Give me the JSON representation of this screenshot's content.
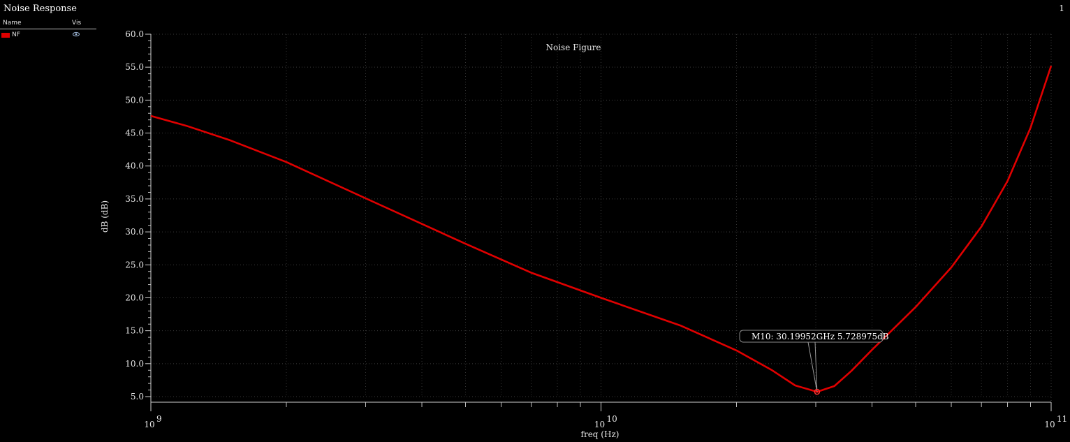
{
  "window": {
    "title": "Noise Response",
    "page_number": "1"
  },
  "legend": {
    "col_name": "Name",
    "col_vis": "Vis",
    "items": [
      {
        "label": "NF",
        "color": "#e00000",
        "visible_icon": "eye-icon"
      }
    ]
  },
  "marker": {
    "text": "M10: 30.19952GHz 5.728975dB",
    "x": 30199520000,
    "y": 5.728975
  },
  "chart_data": {
    "type": "line",
    "title": "Noise Figure",
    "xlabel": "freq (Hz)",
    "ylabel": "dB (dB)",
    "xscale": "log",
    "xlim": [
      1000000000.0,
      100000000000.0
    ],
    "ylim": [
      5.0,
      60.0
    ],
    "yticks": [
      "5.0",
      "10.0",
      "15.0",
      "20.0",
      "25.0",
      "30.0",
      "35.0",
      "40.0",
      "45.0",
      "50.0",
      "55.0",
      "60.0"
    ],
    "xticks": [
      {
        "base": "10",
        "exp": "9",
        "value": 1000000000.0
      },
      {
        "base": "10",
        "exp": "10",
        "value": 10000000000.0
      },
      {
        "base": "10",
        "exp": "11",
        "value": 100000000000.0
      }
    ],
    "grid": true,
    "series": [
      {
        "name": "NF",
        "color": "#e00000",
        "x": [
          1000000000.0,
          1200000000.0,
          1500000000.0,
          2000000000.0,
          3000000000.0,
          5000000000.0,
          7000000000.0,
          10000000000.0,
          15000000000.0,
          20000000000.0,
          24000000000.0,
          27000000000.0,
          30200000000.0,
          33000000000.0,
          36000000000.0,
          40000000000.0,
          50000000000.0,
          60000000000.0,
          70000000000.0,
          80000000000.0,
          90000000000.0,
          100000000000.0
        ],
        "y": [
          47.6,
          46.1,
          43.9,
          40.6,
          35.1,
          28.2,
          23.8,
          20.0,
          15.8,
          12.0,
          9.0,
          6.7,
          5.73,
          6.6,
          8.9,
          12.1,
          18.6,
          24.6,
          30.8,
          37.7,
          45.8,
          55.2
        ]
      }
    ]
  }
}
